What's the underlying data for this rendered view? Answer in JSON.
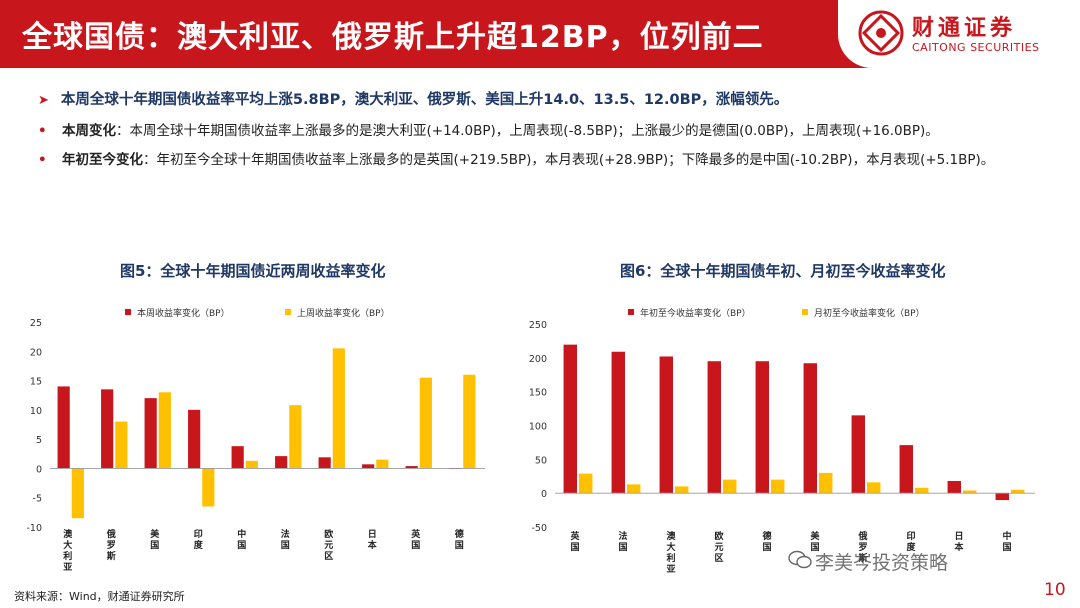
{
  "title": "全球国债：澳大利亚、俄罗斯上升超12BP，位列前二",
  "logo": {
    "cn": "财通证券",
    "en": "CAITONG SECURITIES",
    "icon": "caitong-logo-icon"
  },
  "summary": "本周全球十年期国债收益率平均上涨5.8BP，澳大利亚、俄罗斯、美国上升14.0、13.5、12.0BP，涨幅领先。",
  "bullets": [
    {
      "label": "本周变化",
      "text": "：本周全球十年期国债收益率上涨最多的是澳大利亚(+14.0BP)，上周表现(-8.5BP)；上涨最少的是德国(0.0BP)，上周表现(+16.0BP)。"
    },
    {
      "label": "年初至今变化",
      "text": "：年初至今全球十年期国债收益率上涨最多的是英国(+219.5BP)，本月表现(+28.9BP)；下降最多的是中国(-10.2BP)，本月表现(+5.1BP)。"
    }
  ],
  "colors": {
    "red": "#c8161d",
    "yellow": "#ffc000"
  },
  "chart_data": [
    {
      "type": "bar",
      "title": "图5：全球十年期国债近两周收益率变化",
      "categories": [
        "澳大利亚",
        "俄罗斯",
        "美国",
        "印度",
        "中国",
        "法国",
        "欧元区",
        "日本",
        "英国",
        "德国"
      ],
      "series": [
        {
          "name": "本周收益率变化（BP）",
          "color": "#c8161d",
          "values": [
            14.0,
            13.5,
            12.0,
            10.0,
            3.8,
            2.1,
            1.9,
            0.7,
            0.4,
            0.0
          ]
        },
        {
          "name": "上周收益率变化（BP）",
          "color": "#ffc000",
          "values": [
            -8.5,
            8.0,
            13.0,
            -6.5,
            1.3,
            10.8,
            20.5,
            1.5,
            15.5,
            16.0
          ]
        }
      ],
      "ylim": [
        -10,
        25
      ],
      "yticks": [
        -10,
        -5,
        0,
        5,
        10,
        15,
        20,
        25
      ],
      "legend": "top",
      "grid": false
    },
    {
      "type": "bar",
      "title": "图6：全球十年期国债年初、月初至今收益率变化",
      "categories": [
        "英国",
        "法国",
        "澳大利亚",
        "欧元区",
        "德国",
        "美国",
        "俄罗斯",
        "印度",
        "日本",
        "中国"
      ],
      "series": [
        {
          "name": "年初至今收益率变化（BP）",
          "color": "#c8161d",
          "values": [
            219.5,
            209.0,
            202.0,
            195.0,
            195.0,
            192.0,
            115.0,
            71.0,
            18.0,
            -10.2
          ]
        },
        {
          "name": "月初至今收益率变化（BP）",
          "color": "#ffc000",
          "values": [
            28.9,
            13.0,
            10.0,
            20.0,
            20.0,
            30.0,
            16.0,
            8.0,
            4.0,
            5.1
          ]
        }
      ],
      "ylim": [
        -50,
        250
      ],
      "yticks": [
        -50,
        0,
        50,
        100,
        150,
        200,
        250
      ],
      "legend": "top",
      "grid": false
    }
  ],
  "source": "资料来源：Wind，财通证券研究所",
  "watermark": "李美岑投资策略",
  "page_number": "10"
}
